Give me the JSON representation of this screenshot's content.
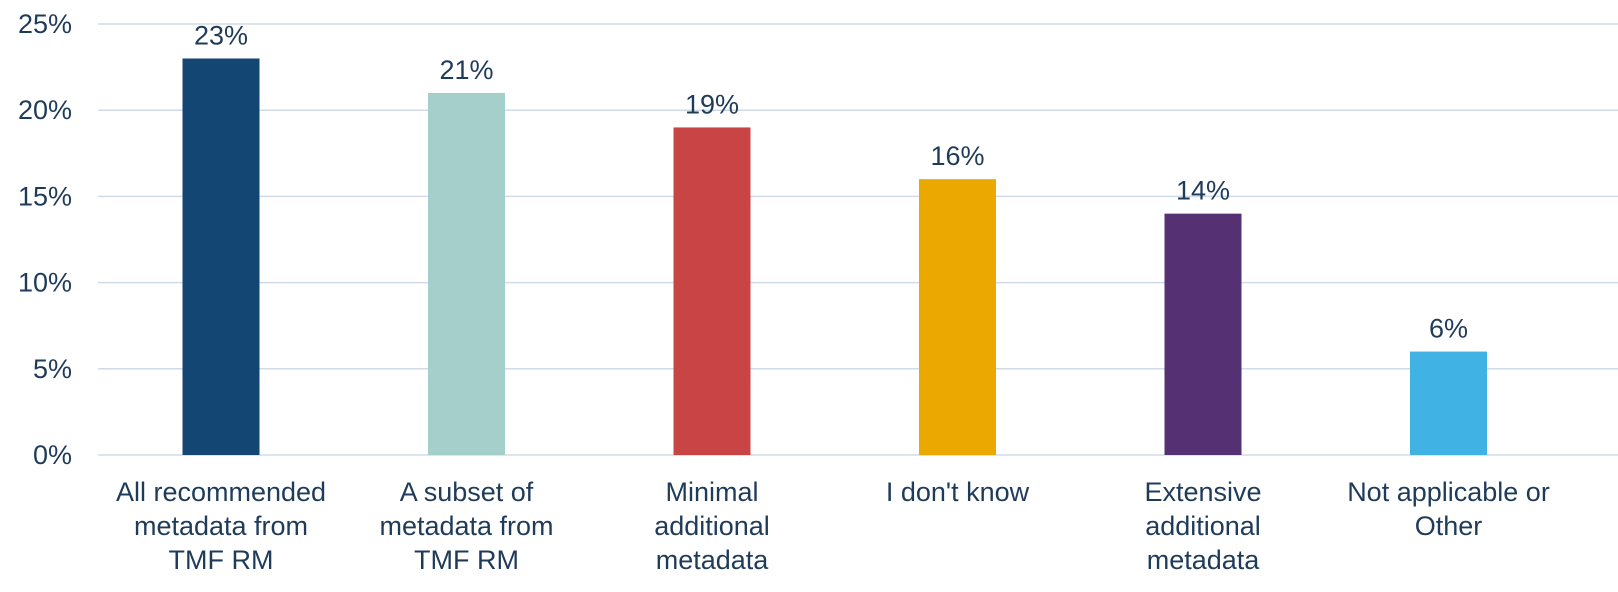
{
  "chart_data": {
    "type": "bar",
    "categories": [
      "All recommended metadata from TMF RM",
      "A subset of metadata from TMF RM",
      "Minimal additional metadata",
      "I don't know",
      "Extensive additional metadata",
      "Not applicable or Other"
    ],
    "category_lines": [
      [
        "All recommended",
        "metadata from",
        "TMF RM"
      ],
      [
        "A subset of",
        "metadata from",
        "TMF RM"
      ],
      [
        "Minimal",
        "additional",
        "metadata"
      ],
      [
        "I don't know"
      ],
      [
        "Extensive",
        "additional",
        "metadata"
      ],
      [
        "Not applicable or",
        "Other"
      ]
    ],
    "values": [
      23,
      21,
      19,
      16,
      14,
      6
    ],
    "data_labels": [
      "23%",
      "21%",
      "19%",
      "16%",
      "14%",
      "6%"
    ],
    "colors": [
      "#144673",
      "#a5cfca",
      "#c94545",
      "#eba900",
      "#553173",
      "#40b2e3"
    ],
    "ylim": [
      0,
      25
    ],
    "yticks": [
      0,
      5,
      10,
      15,
      20,
      25
    ],
    "ytick_labels": [
      "0%",
      "5%",
      "10%",
      "15%",
      "20%",
      "25%"
    ],
    "grid": true,
    "title": "",
    "xlabel": "",
    "ylabel": ""
  }
}
